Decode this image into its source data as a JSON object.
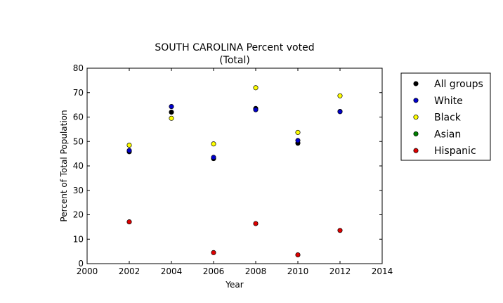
{
  "chart_data": {
    "type": "scatter",
    "title": "SOUTH CAROLINA Percent voted",
    "subtitle": "(Total)",
    "xlabel": "Year",
    "ylabel": "Percent of Total Population",
    "xlim": [
      2000,
      2014
    ],
    "ylim": [
      0,
      80
    ],
    "xticks": [
      2000,
      2002,
      2004,
      2006,
      2008,
      2010,
      2012,
      2014
    ],
    "yticks": [
      0,
      10,
      20,
      30,
      40,
      50,
      60,
      70,
      80
    ],
    "grid": false,
    "legend_position": "outside-right",
    "series": [
      {
        "name": "All groups",
        "color": "#000000",
        "x": [
          2002,
          2004,
          2006,
          2008,
          2010,
          2012
        ],
        "y": [
          45.8,
          62.0,
          43.0,
          63.5,
          49.3,
          62.3
        ]
      },
      {
        "name": "White",
        "color": "#0000cc",
        "x": [
          2002,
          2004,
          2006,
          2008,
          2010,
          2012
        ],
        "y": [
          46.3,
          64.3,
          43.5,
          63.0,
          50.4,
          62.2
        ]
      },
      {
        "name": "Black",
        "color": "#ffff00",
        "x": [
          2002,
          2004,
          2006,
          2008,
          2010,
          2012
        ],
        "y": [
          48.5,
          59.5,
          49.0,
          72.0,
          53.7,
          68.7
        ]
      },
      {
        "name": "Asian",
        "color": "#007f00",
        "x": [],
        "y": []
      },
      {
        "name": "Hispanic",
        "color": "#dd0000",
        "x": [
          2002,
          2006,
          2008,
          2010,
          2012
        ],
        "y": [
          17.1,
          4.5,
          16.4,
          3.6,
          13.6
        ]
      }
    ]
  }
}
